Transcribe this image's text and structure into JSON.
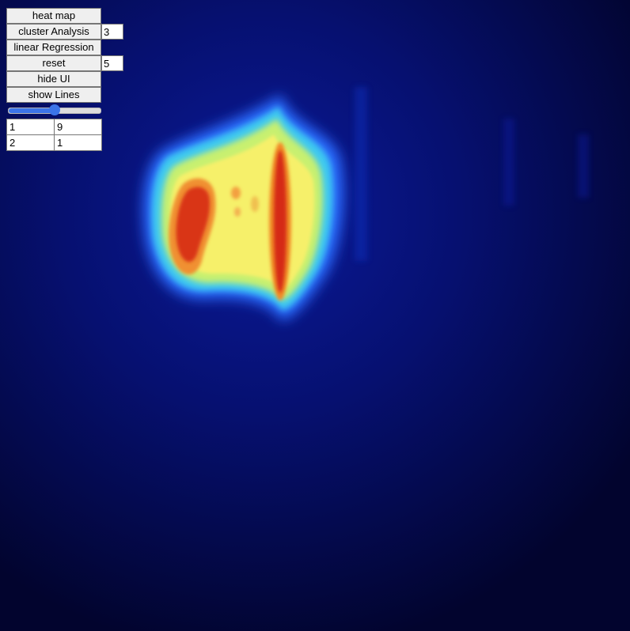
{
  "controls": {
    "heat_map_label": "heat map",
    "cluster_label": "cluster Analysis",
    "cluster_value": "3",
    "regression_label": "linear Regression",
    "reset_label": "reset",
    "reset_value": "5",
    "hide_ui_label": "hide UI",
    "show_lines_label": "show Lines",
    "slider_fraction": 0.5
  },
  "table": {
    "rows": [
      [
        "1",
        "9"
      ],
      [
        "2",
        "1"
      ]
    ]
  },
  "colors": {
    "background": "#02042e",
    "accent": "#3b74e8",
    "heat_low": "#0a1aa0",
    "heat_mid": "#f5f570",
    "heat_high": "#d92a10"
  }
}
